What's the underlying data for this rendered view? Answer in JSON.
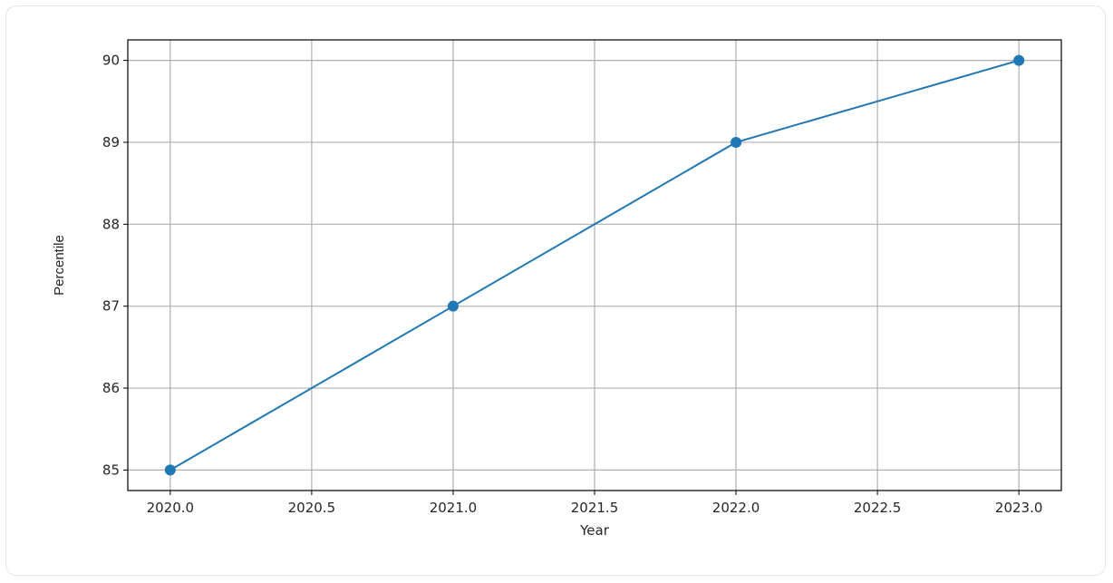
{
  "chart_data": {
    "type": "line",
    "title": "",
    "xlabel": "Year",
    "ylabel": "Percentile",
    "xlim": [
      2019.85,
      2023.15
    ],
    "ylim": [
      84.75,
      90.25
    ],
    "grid": true,
    "x_ticks": [
      2020.0,
      2020.5,
      2021.0,
      2021.5,
      2022.0,
      2022.5,
      2023.0
    ],
    "x_tick_labels": [
      "2020.0",
      "2020.5",
      "2021.0",
      "2021.5",
      "2022.0",
      "2022.5",
      "2023.0"
    ],
    "y_ticks": [
      85,
      86,
      87,
      88,
      89,
      90
    ],
    "y_tick_labels": [
      "85",
      "86",
      "87",
      "88",
      "89",
      "90"
    ],
    "series": [
      {
        "x": [
          2020,
          2021,
          2022,
          2023
        ],
        "values": [
          85,
          87,
          89,
          90
        ],
        "color": "#1f77b4",
        "marker": "circle"
      }
    ]
  }
}
